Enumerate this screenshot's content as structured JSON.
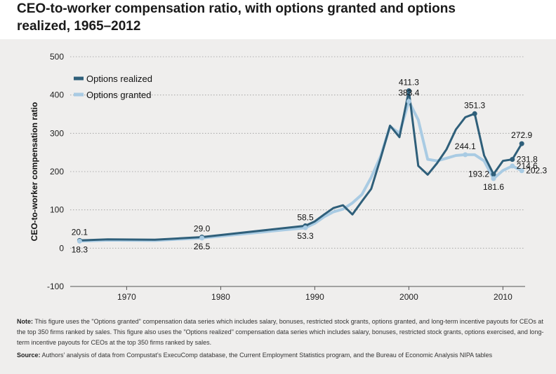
{
  "title": "CEO-to-worker compensation ratio, with options granted and options realized, 1965–2012",
  "colors": {
    "options_realized": "#2f5f7a",
    "options_granted": "#a9cbe3",
    "panel_bg": "#efeeed",
    "gridline": "#9a9a9a"
  },
  "chart_data": {
    "type": "line",
    "title": "CEO-to-worker compensation ratio, with options granted and options realized, 1965–2012",
    "xlabel": "",
    "ylabel": "CEO-to-worker compensation ratio",
    "xlim": [
      1964,
      2014
    ],
    "ylim": [
      -100,
      500
    ],
    "yticks": [
      500,
      400,
      300,
      200,
      100,
      0,
      -100
    ],
    "xticks": [
      1970,
      1980,
      1990,
      2000,
      2010
    ],
    "grid": "horizontal dotted",
    "legend": "top-left",
    "series": [
      {
        "name": "Options realized",
        "color": "#2f5f7a",
        "x": [
          1965,
          1968,
          1973,
          1978,
          1989,
          1990,
          1991,
          1992,
          1993,
          1994,
          1995,
          1996,
          1997,
          1998,
          1999,
          2000,
          2001,
          2002,
          2003,
          2004,
          2005,
          2006,
          2007,
          2008,
          2009,
          2010,
          2011,
          2012
        ],
        "y": [
          20.1,
          23,
          22,
          29.0,
          58.5,
          70,
          88,
          105,
          112,
          88,
          122,
          155,
          235,
          320,
          290,
          411.3,
          215,
          192,
          222,
          258,
          310,
          342,
          351.3,
          242,
          193.2,
          228,
          231.8,
          272.9
        ]
      },
      {
        "name": "Options granted",
        "color": "#a9cbe3",
        "x": [
          1965,
          1968,
          1973,
          1978,
          1989,
          1990,
          1991,
          1992,
          1993,
          1994,
          1995,
          1996,
          1997,
          1998,
          1999,
          2000,
          2001,
          2002,
          2003,
          2004,
          2005,
          2006,
          2007,
          2008,
          2009,
          2010,
          2011,
          2012
        ],
        "y": [
          18.3,
          21,
          20,
          26.5,
          53.3,
          65,
          82,
          95,
          102,
          118,
          140,
          185,
          240,
          318,
          300,
          383.4,
          335,
          232,
          228,
          235,
          242,
          244.1,
          244.1,
          228,
          181.6,
          203,
          214.6,
          202.3
        ]
      }
    ],
    "data_labels": [
      {
        "series": 0,
        "x": 1965,
        "y": 20.1,
        "text": "20.1",
        "pos": "above"
      },
      {
        "series": 1,
        "x": 1965,
        "y": 18.3,
        "text": "18.3",
        "pos": "below"
      },
      {
        "series": 0,
        "x": 1978,
        "y": 29.0,
        "text": "29.0",
        "pos": "above"
      },
      {
        "series": 1,
        "x": 1978,
        "y": 26.5,
        "text": "26.5",
        "pos": "below"
      },
      {
        "series": 0,
        "x": 1989,
        "y": 58.5,
        "text": "58.5",
        "pos": "above"
      },
      {
        "series": 1,
        "x": 1989,
        "y": 53.3,
        "text": "53.3",
        "pos": "below"
      },
      {
        "series": 0,
        "x": 2000,
        "y": 411.3,
        "text": "411.3",
        "pos": "above"
      },
      {
        "series": 1,
        "x": 2000,
        "y": 383.4,
        "text": "383.4",
        "pos": "above"
      },
      {
        "series": 0,
        "x": 2007,
        "y": 351.3,
        "text": "351.3",
        "pos": "above"
      },
      {
        "series": 1,
        "x": 2006,
        "y": 244.1,
        "text": "244.1",
        "pos": "above"
      },
      {
        "series": 0,
        "x": 2009,
        "y": 193.2,
        "text": "193.2",
        "pos": "left"
      },
      {
        "series": 1,
        "x": 2009,
        "y": 181.6,
        "text": "181.6",
        "pos": "below"
      },
      {
        "series": 0,
        "x": 2012,
        "y": 272.9,
        "text": "272.9",
        "pos": "above"
      },
      {
        "series": 0,
        "x": 2011,
        "y": 231.8,
        "text": "231.8",
        "pos": "right"
      },
      {
        "series": 1,
        "x": 2011,
        "y": 214.6,
        "text": "214.6",
        "pos": "right"
      },
      {
        "series": 1,
        "x": 2012,
        "y": 202.3,
        "text": "202.3",
        "pos": "right"
      }
    ]
  },
  "notes": {
    "note_label": "Note:",
    "note_text": "This figure uses the \"Options granted\" compensation data series which includes salary, bonuses, restricted stock grants, options granted, and long-term incentive payouts for CEOs at the top 350 firms ranked by sales. This figure also uses the \"Options realized\" compensation data series which includes salary, bonuses, restricted stock grants, options exercised, and long-term incentive payouts for CEOs at the top 350 firms ranked by sales.",
    "source_label": "Source:",
    "source_text": "Authors’ analysis of data from Compustat’s ExecuComp database, the Current Employment Statistics program, and the Bureau of Economic Analysis NIPA tables"
  }
}
